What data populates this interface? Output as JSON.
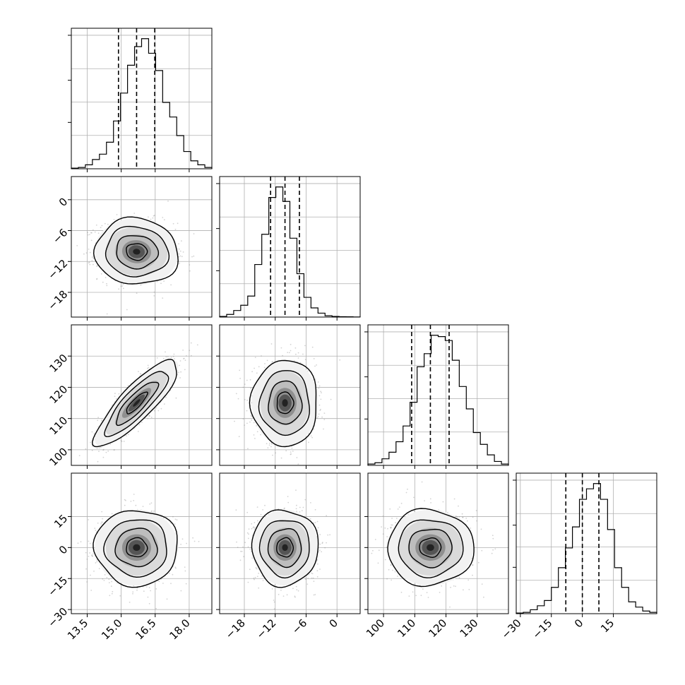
{
  "chart_data": {
    "type": "corner",
    "parameters": [
      {
        "range": [
          12.8,
          19.0
        ],
        "ticks": [
          13.5,
          15.0,
          16.5,
          18.0
        ],
        "tick_labels": [
          "13.5",
          "15.0",
          "16.5",
          "18.0"
        ],
        "quantiles": [
          14.88,
          15.68,
          16.48
        ],
        "hist": [
          0.005,
          0.01,
          0.03,
          0.07,
          0.11,
          0.2,
          0.36,
          0.57,
          0.78,
          0.92,
          0.98,
          0.87,
          0.74,
          0.5,
          0.39,
          0.25,
          0.13,
          0.06,
          0.03,
          0.01
        ]
      },
      {
        "range": [
          -22.8,
          4.5
        ],
        "ticks": [
          -18,
          -12,
          -6,
          0
        ],
        "tick_labels": [
          "−18",
          "−12",
          "−6",
          "0"
        ],
        "quantiles": [
          -12.9,
          -10.1,
          -7.3
        ],
        "hist": [
          0.005,
          0.02,
          0.05,
          0.09,
          0.16,
          0.4,
          0.63,
          0.91,
          0.99,
          0.88,
          0.6,
          0.33,
          0.15,
          0.07,
          0.03,
          0.01,
          0.005,
          0.003,
          0.002,
          0.001
        ]
      },
      {
        "range": [
          95,
          140
        ],
        "ticks": [
          100,
          110,
          120,
          130
        ],
        "tick_labels": [
          "100",
          "110",
          "120",
          "130"
        ],
        "quantiles": [
          109.0,
          115.0,
          121.0
        ],
        "hist": [
          0.01,
          0.02,
          0.05,
          0.1,
          0.18,
          0.3,
          0.48,
          0.75,
          0.85,
          0.99,
          0.98,
          0.95,
          0.8,
          0.6,
          0.43,
          0.25,
          0.16,
          0.08,
          0.03,
          0.01
        ]
      },
      {
        "range": [
          -32,
          36
        ],
        "ticks": [
          -30,
          -15,
          0,
          15
        ],
        "tick_labels": [
          "−30",
          "−15",
          "0",
          "15"
        ],
        "quantiles": [
          -8.0,
          0.0,
          8.0
        ],
        "hist": [
          0.005,
          0.01,
          0.03,
          0.06,
          0.1,
          0.2,
          0.35,
          0.5,
          0.66,
          0.87,
          0.95,
          0.99,
          0.87,
          0.64,
          0.35,
          0.2,
          0.09,
          0.05,
          0.02,
          0.01
        ]
      }
    ],
    "pairs": [
      {
        "row": 1,
        "col": 0,
        "mean": [
          15.68,
          -10.1
        ],
        "sd": [
          0.8,
          2.8
        ],
        "rho": -0.05
      },
      {
        "row": 2,
        "col": 0,
        "mean": [
          15.68,
          115.0
        ],
        "sd": [
          0.8,
          6.0
        ],
        "rho": 0.85
      },
      {
        "row": 2,
        "col": 1,
        "mean": [
          -10.1,
          115.0
        ],
        "sd": [
          2.8,
          6.0
        ],
        "rho": 0.0
      },
      {
        "row": 3,
        "col": 0,
        "mean": [
          15.68,
          0.0
        ],
        "sd": [
          0.8,
          8.0
        ],
        "rho": 0.0
      },
      {
        "row": 3,
        "col": 1,
        "mean": [
          -10.1,
          0.0
        ],
        "sd": [
          2.8,
          8.0
        ],
        "rho": 0.0
      },
      {
        "row": 3,
        "col": 2,
        "mean": [
          115.0,
          0.0
        ],
        "sd": [
          6.0,
          8.0
        ],
        "rho": 0.0
      }
    ],
    "grid": true,
    "quantile_line_style": "dashed",
    "contour_levels_sigma": [
      0.5,
      1.0,
      1.5,
      2.0
    ],
    "colors": {
      "line": "#000000",
      "scatter": "#808080",
      "grid": "#b0b0b0"
    }
  }
}
